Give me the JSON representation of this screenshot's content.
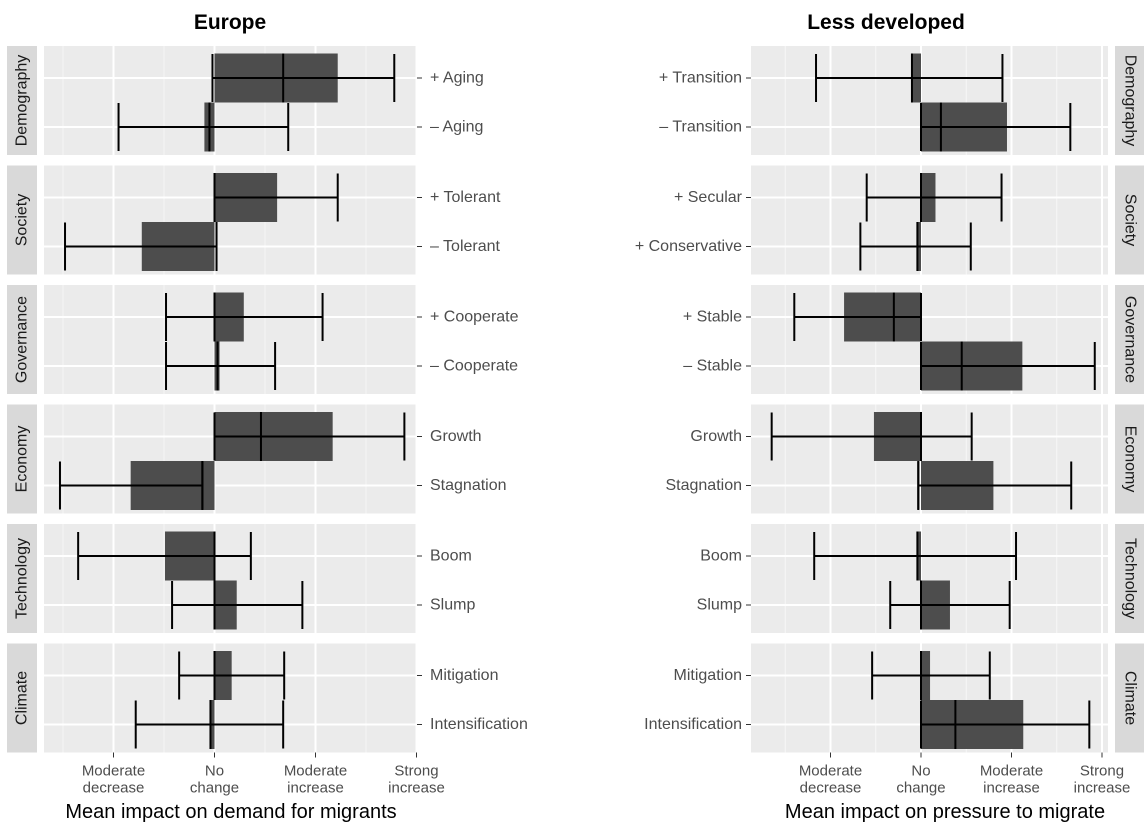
{
  "chart_data": [
    {
      "type": "bar",
      "title": "Europe",
      "xlabel": "Mean impact on demand for migrants",
      "xlim": [
        -1.5,
        2.0
      ],
      "x_ticks": [
        {
          "value": -1,
          "lines": [
            "Moderate",
            "decrease"
          ]
        },
        {
          "value": 0,
          "lines": [
            "No",
            "change"
          ]
        },
        {
          "value": 1,
          "lines": [
            "Moderate",
            "increase"
          ]
        },
        {
          "value": 2,
          "lines": [
            "Strong",
            "increase"
          ]
        }
      ],
      "strip_position": "left",
      "label_position": "right",
      "facets": [
        {
          "name": "Demography",
          "rows": [
            {
              "label": "+ Aging",
              "mean": 1.22,
              "median": 0.68,
              "err_low": -0.02,
              "err_high": 1.78
            },
            {
              "label": "– Aging",
              "mean": -0.1,
              "median": -0.05,
              "err_low": -0.95,
              "err_high": 0.73
            }
          ]
        },
        {
          "name": "Society",
          "rows": [
            {
              "label": "+ Tolerant",
              "mean": 0.62,
              "median": 0.0,
              "err_low": 0.0,
              "err_high": 1.22
            },
            {
              "label": "– Tolerant",
              "mean": -0.72,
              "median": 0.02,
              "err_low": -1.48,
              "err_high": 0.02
            }
          ]
        },
        {
          "name": "Governance",
          "rows": [
            {
              "label": "+ Cooperate",
              "mean": 0.29,
              "median": 0.0,
              "err_low": -0.48,
              "err_high": 1.07
            },
            {
              "label": "– Cooperate",
              "mean": 0.05,
              "median": 0.03,
              "err_low": -0.48,
              "err_high": 0.6
            }
          ]
        },
        {
          "name": "Economy",
          "rows": [
            {
              "label": "Growth",
              "mean": 1.17,
              "median": 0.46,
              "err_low": 0.0,
              "err_high": 1.88
            },
            {
              "label": "Stagnation",
              "mean": -0.83,
              "median": -0.12,
              "err_low": -1.53,
              "err_high": -0.12
            }
          ]
        },
        {
          "name": "Technology",
          "rows": [
            {
              "label": "Boom",
              "mean": -0.49,
              "median": 0.0,
              "err_low": -1.35,
              "err_high": 0.36
            },
            {
              "label": "Slump",
              "mean": 0.22,
              "median": 0.0,
              "err_low": -0.42,
              "err_high": 0.87
            }
          ]
        },
        {
          "name": "Climate",
          "rows": [
            {
              "label": "Mitigation",
              "mean": 0.17,
              "median": 0.0,
              "err_low": -0.35,
              "err_high": 0.69
            },
            {
              "label": "Intensification",
              "mean": -0.04,
              "median": -0.04,
              "err_low": -0.78,
              "err_high": 0.68
            }
          ]
        }
      ]
    },
    {
      "type": "bar",
      "title": "Less developed",
      "xlabel": "Mean impact on pressure to migrate",
      "xlim": [
        -1.75,
        2.0
      ],
      "x_ticks": [
        {
          "value": -1,
          "lines": [
            "Moderate",
            "decrease"
          ]
        },
        {
          "value": 0,
          "lines": [
            "No",
            "change"
          ]
        },
        {
          "value": 1,
          "lines": [
            "Moderate",
            "increase"
          ]
        },
        {
          "value": 2,
          "lines": [
            "Strong",
            "increase"
          ]
        }
      ],
      "strip_position": "right",
      "label_position": "left",
      "facets": [
        {
          "name": "Demography",
          "rows": [
            {
              "label": "+ Transition",
              "mean": -0.1,
              "median": -0.1,
              "err_low": -1.16,
              "err_high": 0.9
            },
            {
              "label": "– Transition",
              "mean": 0.95,
              "median": 0.22,
              "err_low": 0.0,
              "err_high": 1.65
            }
          ]
        },
        {
          "name": "Society",
          "rows": [
            {
              "label": "+ Secular",
              "mean": 0.16,
              "median": 0.0,
              "err_low": -0.6,
              "err_high": 0.89
            },
            {
              "label": "+ Conservative",
              "mean": -0.04,
              "median": -0.04,
              "err_low": -0.67,
              "err_high": 0.55
            }
          ]
        },
        {
          "name": "Governance",
          "rows": [
            {
              "label": "+ Stable",
              "mean": -0.85,
              "median": -0.3,
              "err_low": -1.4,
              "err_high": 0.0
            },
            {
              "label": "– Stable",
              "mean": 1.12,
              "median": 0.45,
              "err_low": 0.0,
              "err_high": 1.92
            }
          ]
        },
        {
          "name": "Economy",
          "rows": [
            {
              "label": "Growth",
              "mean": -0.52,
              "median": 0.0,
              "err_low": -1.65,
              "err_high": 0.56
            },
            {
              "label": "Stagnation",
              "mean": 0.8,
              "median": -0.03,
              "err_low": -0.03,
              "err_high": 1.66
            }
          ]
        },
        {
          "name": "Technology",
          "rows": [
            {
              "label": "Boom",
              "mean": -0.04,
              "median": -0.04,
              "err_low": -1.18,
              "err_high": 1.05
            },
            {
              "label": "Slump",
              "mean": 0.32,
              "median": 0.0,
              "err_low": -0.34,
              "err_high": 0.98
            }
          ]
        },
        {
          "name": "Climate",
          "rows": [
            {
              "label": "Mitigation",
              "mean": 0.1,
              "median": 0.0,
              "err_low": -0.54,
              "err_high": 0.76
            },
            {
              "label": "Intensification",
              "mean": 1.13,
              "median": 0.38,
              "err_low": 0.0,
              "err_high": 1.86
            }
          ]
        }
      ]
    }
  ]
}
